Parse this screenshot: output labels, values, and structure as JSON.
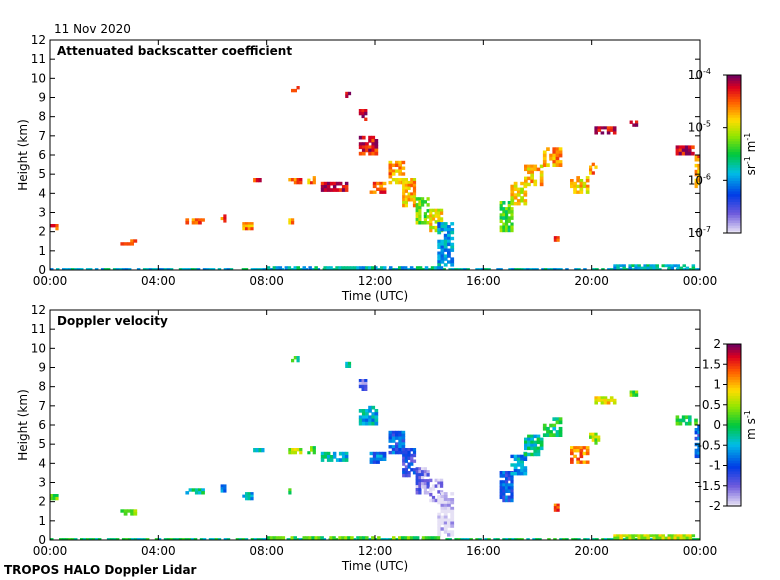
{
  "date_label": "11 Nov 2020",
  "footer": "TROPOS HALO Doppler Lidar",
  "chart_data": [
    {
      "type": "heatmap",
      "title": "Attenuated backscatter coefficient",
      "xlabel": "Time (UTC)",
      "ylabel": "Height (km)",
      "xlim": [
        0,
        24
      ],
      "ylim": [
        0,
        12
      ],
      "x_ticks": [
        "00:00",
        "04:00",
        "08:00",
        "12:00",
        "16:00",
        "20:00",
        "00:00"
      ],
      "y_ticks": [
        "0",
        "1",
        "2",
        "3",
        "4",
        "5",
        "6",
        "7",
        "8",
        "9",
        "10",
        "11",
        "12"
      ],
      "colorbar": {
        "scale": "log",
        "range": [
          1e-07,
          0.0001
        ],
        "tick_labels": [
          "10",
          "10",
          "10",
          "10"
        ],
        "tick_exponents": [
          "-7",
          "-6",
          "-5",
          "-4"
        ],
        "unit_parts": [
          "sr",
          "-1",
          " m",
          "-1"
        ]
      },
      "features": [
        {
          "t0": 0.0,
          "t1": 0.3,
          "h0": 2.1,
          "h1": 2.4,
          "v": 0.85
        },
        {
          "t0": 2.6,
          "t1": 3.2,
          "h0": 1.3,
          "h1": 1.6,
          "v": 0.9
        },
        {
          "t0": 5.0,
          "t1": 5.7,
          "h0": 2.4,
          "h1": 2.7,
          "v": 0.85
        },
        {
          "t0": 6.3,
          "t1": 6.5,
          "h0": 2.5,
          "h1": 2.9,
          "v": 0.85
        },
        {
          "t0": 7.1,
          "t1": 7.5,
          "h0": 2.1,
          "h1": 2.5,
          "v": 0.8
        },
        {
          "t0": 7.4,
          "t1": 7.9,
          "h0": 4.6,
          "h1": 4.8,
          "v": 0.9
        },
        {
          "t0": 8.8,
          "t1": 9.0,
          "h0": 2.4,
          "h1": 2.7,
          "v": 0.8
        },
        {
          "t0": 8.9,
          "t1": 9.2,
          "h0": 9.3,
          "h1": 9.6,
          "v": 0.95
        },
        {
          "t0": 8.8,
          "t1": 9.3,
          "h0": 4.5,
          "h1": 4.8,
          "v": 0.85
        },
        {
          "t0": 9.5,
          "t1": 9.8,
          "h0": 4.5,
          "h1": 4.9,
          "v": 0.8
        },
        {
          "t0": 10.0,
          "t1": 11.0,
          "h0": 4.1,
          "h1": 4.6,
          "v": 0.95
        },
        {
          "t0": 10.9,
          "t1": 11.1,
          "h0": 9.0,
          "h1": 9.3,
          "v": 0.95
        },
        {
          "t0": 11.4,
          "t1": 11.7,
          "h0": 7.8,
          "h1": 8.4,
          "v": 0.95
        },
        {
          "t0": 11.4,
          "t1": 12.1,
          "h0": 6.0,
          "h1": 7.0,
          "v": 0.92
        },
        {
          "t0": 11.8,
          "t1": 12.4,
          "h0": 4.0,
          "h1": 4.6,
          "v": 0.85
        },
        {
          "t0": 12.5,
          "t1": 13.1,
          "h0": 4.5,
          "h1": 5.7,
          "v": 0.78
        },
        {
          "t0": 13.0,
          "t1": 13.5,
          "h0": 3.3,
          "h1": 4.8,
          "v": 0.75
        },
        {
          "t0": 13.5,
          "t1": 14.0,
          "h0": 2.4,
          "h1": 3.8,
          "v": 0.6
        },
        {
          "t0": 14.0,
          "t1": 14.5,
          "h0": 2.0,
          "h1": 3.2,
          "v": 0.7
        },
        {
          "t0": 14.3,
          "t1": 14.9,
          "h0": 0.2,
          "h1": 2.5,
          "v": 0.35
        },
        {
          "t0": 16.6,
          "t1": 17.1,
          "h0": 2.0,
          "h1": 3.6,
          "v": 0.55
        },
        {
          "t0": 17.0,
          "t1": 17.6,
          "h0": 3.4,
          "h1": 4.6,
          "v": 0.7
        },
        {
          "t0": 17.5,
          "t1": 18.2,
          "h0": 4.4,
          "h1": 5.5,
          "v": 0.75
        },
        {
          "t0": 18.2,
          "t1": 18.9,
          "h0": 5.4,
          "h1": 6.4,
          "v": 0.78
        },
        {
          "t0": 19.2,
          "t1": 19.9,
          "h0": 4.0,
          "h1": 4.9,
          "v": 0.72
        },
        {
          "t0": 19.9,
          "t1": 20.3,
          "h0": 5.0,
          "h1": 5.6,
          "v": 0.8
        },
        {
          "t0": 20.1,
          "t1": 20.9,
          "h0": 7.1,
          "h1": 7.5,
          "v": 0.95
        },
        {
          "t0": 21.4,
          "t1": 21.7,
          "h0": 7.5,
          "h1": 7.8,
          "v": 0.95
        },
        {
          "t0": 23.1,
          "t1": 23.9,
          "h0": 6.0,
          "h1": 6.5,
          "v": 0.95
        },
        {
          "t0": 23.8,
          "t1": 24.0,
          "h0": 4.3,
          "h1": 6.0,
          "v": 0.8
        },
        {
          "t0": 18.6,
          "t1": 18.8,
          "h0": 1.5,
          "h1": 1.9,
          "v": 0.85
        },
        {
          "t0": 0.0,
          "t1": 24.0,
          "h0": 0.0,
          "h1": 0.1,
          "v": 0.4
        },
        {
          "t0": 8.0,
          "t1": 14.5,
          "h0": 0.05,
          "h1": 0.2,
          "v": 0.4
        },
        {
          "t0": 20.8,
          "t1": 23.8,
          "h0": 0.05,
          "h1": 0.3,
          "v": 0.4
        }
      ]
    },
    {
      "type": "heatmap",
      "title": "Doppler velocity",
      "xlabel": "Time (UTC)",
      "ylabel": "Height (km)",
      "xlim": [
        0,
        24
      ],
      "ylim": [
        0,
        12
      ],
      "x_ticks": [
        "00:00",
        "04:00",
        "08:00",
        "12:00",
        "16:00",
        "20:00",
        "00:00"
      ],
      "y_ticks": [
        "0",
        "1",
        "2",
        "3",
        "4",
        "5",
        "6",
        "7",
        "8",
        "9",
        "10",
        "11",
        "12"
      ],
      "colorbar": {
        "scale": "linear",
        "range": [
          -2,
          2
        ],
        "tick_labels": [
          "-2",
          "-1.5",
          "-1",
          "-0.5",
          "0",
          "0.5",
          "1",
          "1.5",
          "2"
        ],
        "unit_parts": [
          "m s",
          "-1"
        ]
      },
      "features": [
        {
          "t0": 0.0,
          "t1": 0.3,
          "h0": 2.1,
          "h1": 2.4,
          "v": 0.2
        },
        {
          "t0": 2.6,
          "t1": 3.2,
          "h0": 1.3,
          "h1": 1.6,
          "v": 0.25
        },
        {
          "t0": 5.0,
          "t1": 5.7,
          "h0": 2.4,
          "h1": 2.7,
          "v": -0.3
        },
        {
          "t0": 6.3,
          "t1": 6.5,
          "h0": 2.5,
          "h1": 2.9,
          "v": -0.6
        },
        {
          "t0": 7.1,
          "t1": 7.5,
          "h0": 2.1,
          "h1": 2.5,
          "v": -0.5
        },
        {
          "t0": 7.4,
          "t1": 7.9,
          "h0": 4.6,
          "h1": 4.8,
          "v": -0.2
        },
        {
          "t0": 8.8,
          "t1": 9.0,
          "h0": 2.4,
          "h1": 2.7,
          "v": 0.3
        },
        {
          "t0": 8.9,
          "t1": 9.2,
          "h0": 9.3,
          "h1": 9.6,
          "v": -0.1
        },
        {
          "t0": 8.8,
          "t1": 9.3,
          "h0": 4.5,
          "h1": 4.8,
          "v": 0.6
        },
        {
          "t0": 9.5,
          "t1": 9.8,
          "h0": 4.5,
          "h1": 4.9,
          "v": 0.3
        },
        {
          "t0": 10.0,
          "t1": 11.0,
          "h0": 4.1,
          "h1": 4.6,
          "v": -0.4
        },
        {
          "t0": 10.9,
          "t1": 11.1,
          "h0": 9.0,
          "h1": 9.3,
          "v": -0.3
        },
        {
          "t0": 11.4,
          "t1": 11.7,
          "h0": 7.8,
          "h1": 8.4,
          "v": -1.5
        },
        {
          "t0": 11.4,
          "t1": 12.1,
          "h0": 6.0,
          "h1": 7.0,
          "v": -0.5
        },
        {
          "t0": 11.8,
          "t1": 12.4,
          "h0": 4.0,
          "h1": 4.6,
          "v": -0.8
        },
        {
          "t0": 12.5,
          "t1": 13.1,
          "h0": 4.5,
          "h1": 5.7,
          "v": -1.0
        },
        {
          "t0": 13.0,
          "t1": 13.5,
          "h0": 3.3,
          "h1": 4.8,
          "v": -1.2
        },
        {
          "t0": 13.5,
          "t1": 14.0,
          "h0": 2.4,
          "h1": 3.8,
          "v": -1.6
        },
        {
          "t0": 14.0,
          "t1": 14.5,
          "h0": 2.0,
          "h1": 3.2,
          "v": -1.8
        },
        {
          "t0": 14.3,
          "t1": 14.9,
          "h0": 0.2,
          "h1": 2.5,
          "v": -2.0
        },
        {
          "t0": 16.6,
          "t1": 17.1,
          "h0": 2.0,
          "h1": 3.6,
          "v": -1.0
        },
        {
          "t0": 17.0,
          "t1": 17.6,
          "h0": 3.4,
          "h1": 4.6,
          "v": -0.6
        },
        {
          "t0": 17.5,
          "t1": 18.2,
          "h0": 4.4,
          "h1": 5.5,
          "v": -0.3
        },
        {
          "t0": 18.2,
          "t1": 18.9,
          "h0": 5.4,
          "h1": 6.4,
          "v": -0.1
        },
        {
          "t0": 19.2,
          "t1": 19.9,
          "h0": 4.0,
          "h1": 4.9,
          "v": 1.2
        },
        {
          "t0": 19.9,
          "t1": 20.3,
          "h0": 5.0,
          "h1": 5.6,
          "v": 0.5
        },
        {
          "t0": 20.1,
          "t1": 20.9,
          "h0": 7.1,
          "h1": 7.5,
          "v": 0.8
        },
        {
          "t0": 21.4,
          "t1": 21.7,
          "h0": 7.5,
          "h1": 7.8,
          "v": 0.3
        },
        {
          "t0": 23.1,
          "t1": 23.9,
          "h0": 6.0,
          "h1": 6.5,
          "v": 0.0
        },
        {
          "t0": 23.8,
          "t1": 24.0,
          "h0": 4.3,
          "h1": 6.0,
          "v": -1.0
        },
        {
          "t0": 18.6,
          "t1": 18.8,
          "h0": 1.5,
          "h1": 1.9,
          "v": 1.5
        },
        {
          "t0": 0.0,
          "t1": 24.0,
          "h0": 0.0,
          "h1": 0.1,
          "v": -0.2
        },
        {
          "t0": 8.0,
          "t1": 14.5,
          "h0": 0.05,
          "h1": 0.2,
          "v": 0.2
        },
        {
          "t0": 20.8,
          "t1": 23.8,
          "h0": 0.05,
          "h1": 0.3,
          "v": 0.6
        }
      ]
    }
  ]
}
